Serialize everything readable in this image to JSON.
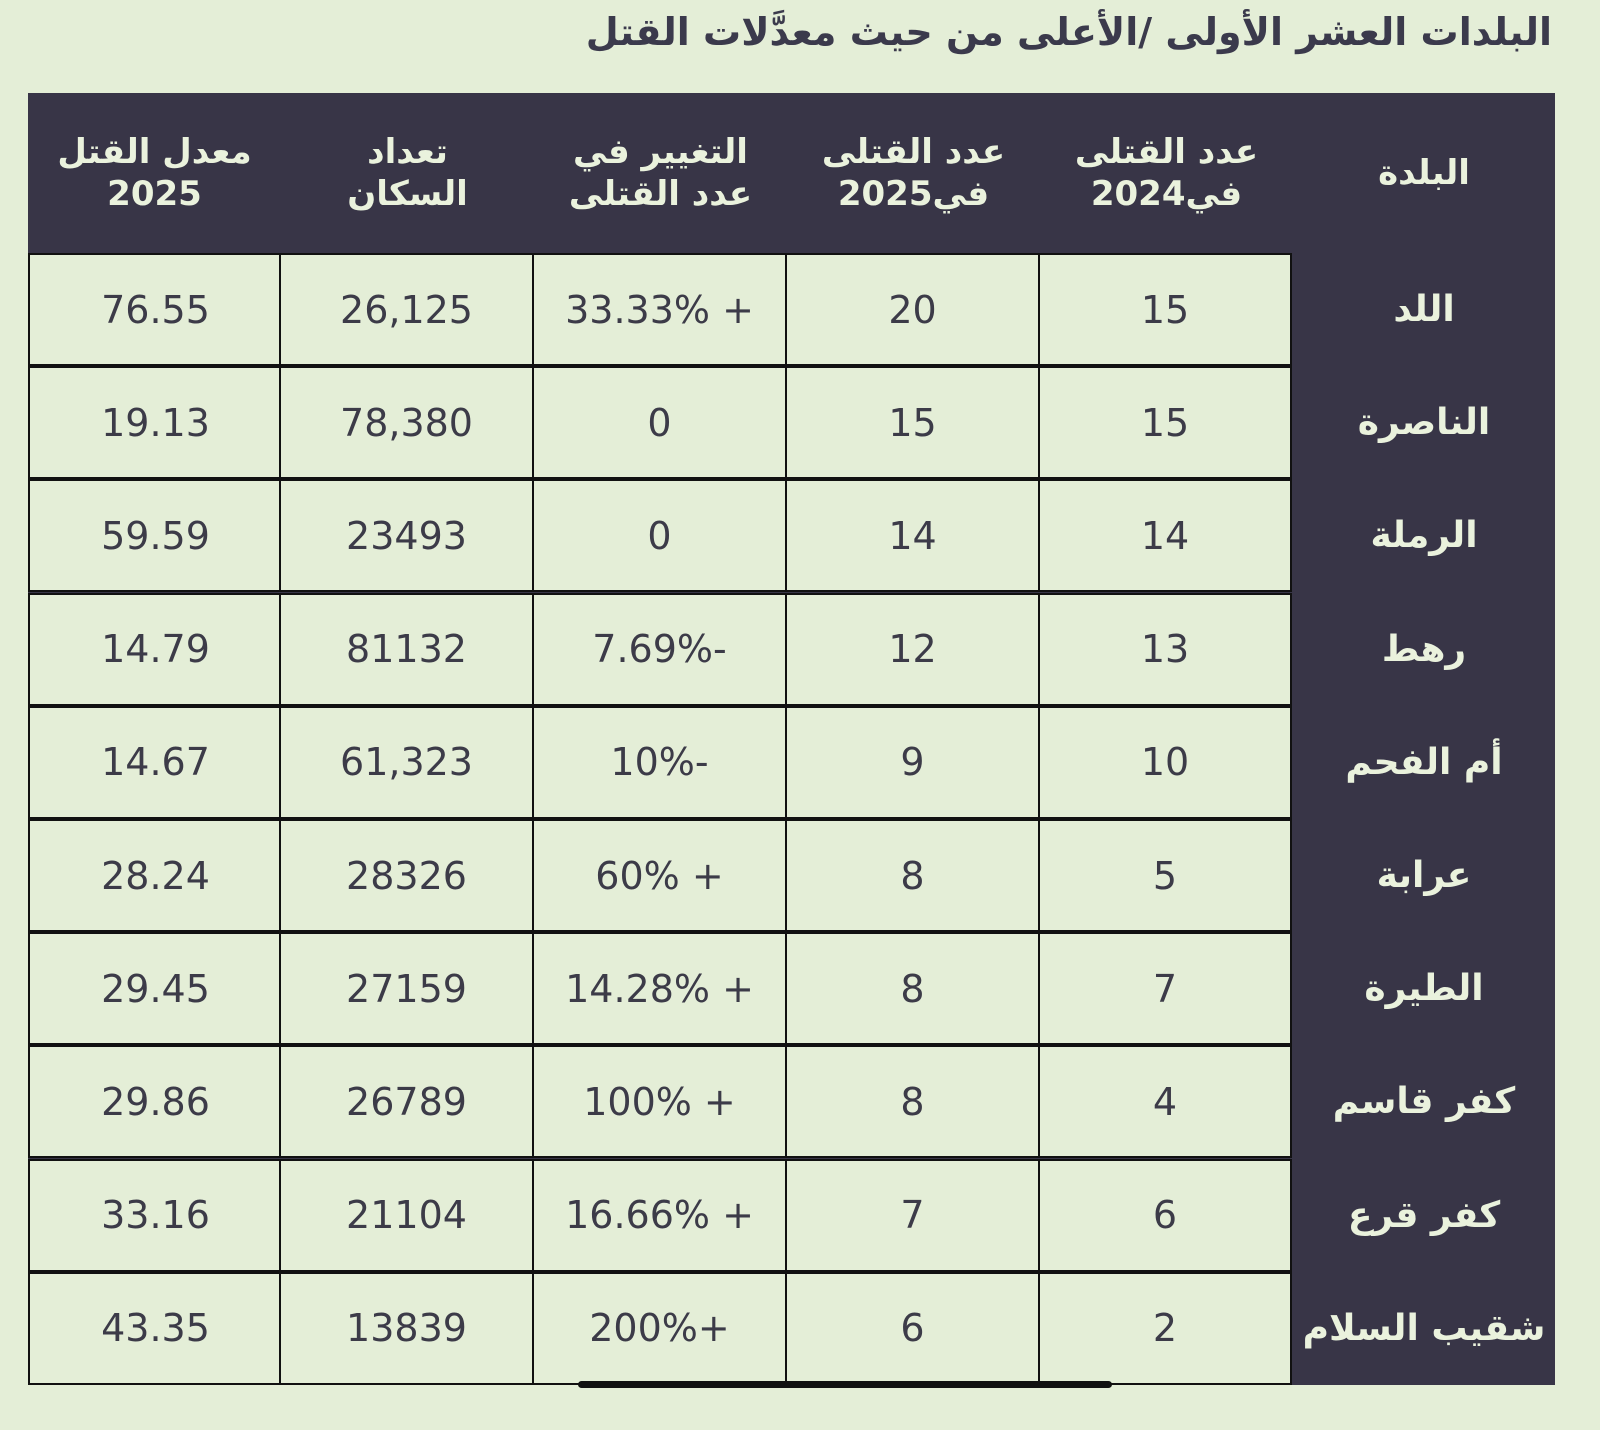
{
  "title": "البلدات العشر الأولى /الأعلى من حيث معدَّلات القتل",
  "colors": {
    "background": "#e4eed7",
    "header": "#383547",
    "header_text": "#eaf2dd",
    "cell_text": "#3c3b48"
  },
  "headers": {
    "town": "البلدة",
    "killed_2024": "عدد القتلى\nفي2024",
    "killed_2025": "عدد القتلى\nفي2025",
    "change": "التغيير في\nعدد القتلى",
    "population": "تعداد\nالسكان",
    "rate_2025": "معدل القتل\n2025"
  },
  "rows": [
    {
      "town": "اللد",
      "killed_2024": "15",
      "killed_2025": "20",
      "change": "33.33% +",
      "population": "26,125",
      "rate_2025": "76.55"
    },
    {
      "town": "الناصرة",
      "killed_2024": "15",
      "killed_2025": "15",
      "change": "0",
      "population": "78,380",
      "rate_2025": "19.13"
    },
    {
      "town": "الرملة",
      "killed_2024": "14",
      "killed_2025": "14",
      "change": "0",
      "population": "23493",
      "rate_2025": "59.59"
    },
    {
      "town": "رهط",
      "killed_2024": "13",
      "killed_2025": "12",
      "change": "7.69%-",
      "population": "81132",
      "rate_2025": "14.79"
    },
    {
      "town": "أم الفحم",
      "killed_2024": "10",
      "killed_2025": "9",
      "change": "10%-",
      "population": "61,323",
      "rate_2025": "14.67"
    },
    {
      "town": "عرابة",
      "killed_2024": "5",
      "killed_2025": "8",
      "change": "60% +",
      "population": "28326",
      "rate_2025": "28.24"
    },
    {
      "town": "الطيرة",
      "killed_2024": "7",
      "killed_2025": "8",
      "change": "14.28% +",
      "population": "27159",
      "rate_2025": "29.45"
    },
    {
      "town": "كفر قاسم",
      "killed_2024": "4",
      "killed_2025": "8",
      "change": "100% +",
      "population": "26789",
      "rate_2025": "29.86"
    },
    {
      "town": "كفر قرع",
      "killed_2024": "6",
      "killed_2025": "7",
      "change": "16.66% +",
      "population": "21104",
      "rate_2025": "33.16"
    },
    {
      "town": "شقيب السلام",
      "killed_2024": "2",
      "killed_2025": "6",
      "change": "200%+",
      "population": "13839",
      "rate_2025": "43.35"
    }
  ]
}
